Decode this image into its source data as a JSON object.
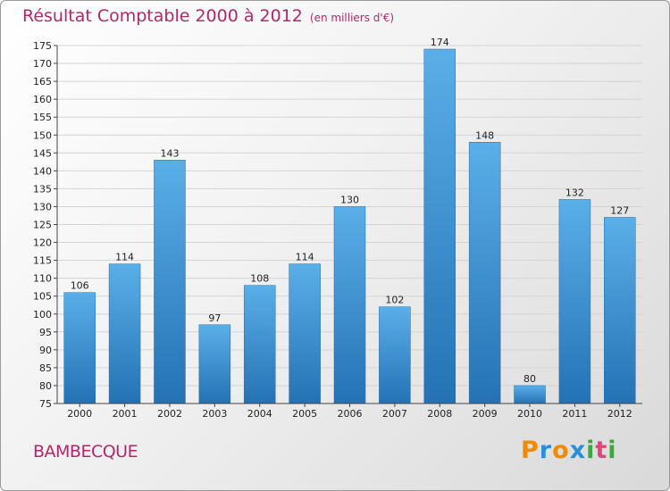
{
  "title": "Résultat Comptable 2000 à 2012",
  "subtitle": "(en milliers d'€)",
  "commune": "BAMBECQUE",
  "logo": {
    "letters": [
      "P",
      "r",
      "o",
      "x",
      "i",
      "t",
      "i"
    ],
    "colors": [
      "#f08a00",
      "#2a8fd8",
      "#f08a00",
      "#2a8fd8",
      "#3aa83a",
      "#e0457b",
      "#3aa83a"
    ]
  },
  "colors": {
    "title": "#b0286a",
    "bar_top": "#5aafe8",
    "bar_bottom": "#2472b4"
  },
  "chart_data": {
    "type": "bar",
    "title": "Résultat Comptable 2000 à 2012",
    "categories": [
      "2000",
      "2001",
      "2002",
      "2003",
      "2004",
      "2005",
      "2006",
      "2007",
      "2008",
      "2009",
      "2010",
      "2011",
      "2012"
    ],
    "values": [
      106,
      114,
      143,
      97,
      108,
      114,
      130,
      102,
      174,
      148,
      80,
      132,
      127
    ],
    "ylim": [
      75,
      175
    ],
    "yticks": [
      75,
      80,
      85,
      90,
      95,
      100,
      105,
      110,
      115,
      120,
      125,
      130,
      135,
      140,
      145,
      150,
      155,
      160,
      165,
      170,
      175
    ],
    "xlabel": "",
    "ylabel": "",
    "grid": true
  }
}
